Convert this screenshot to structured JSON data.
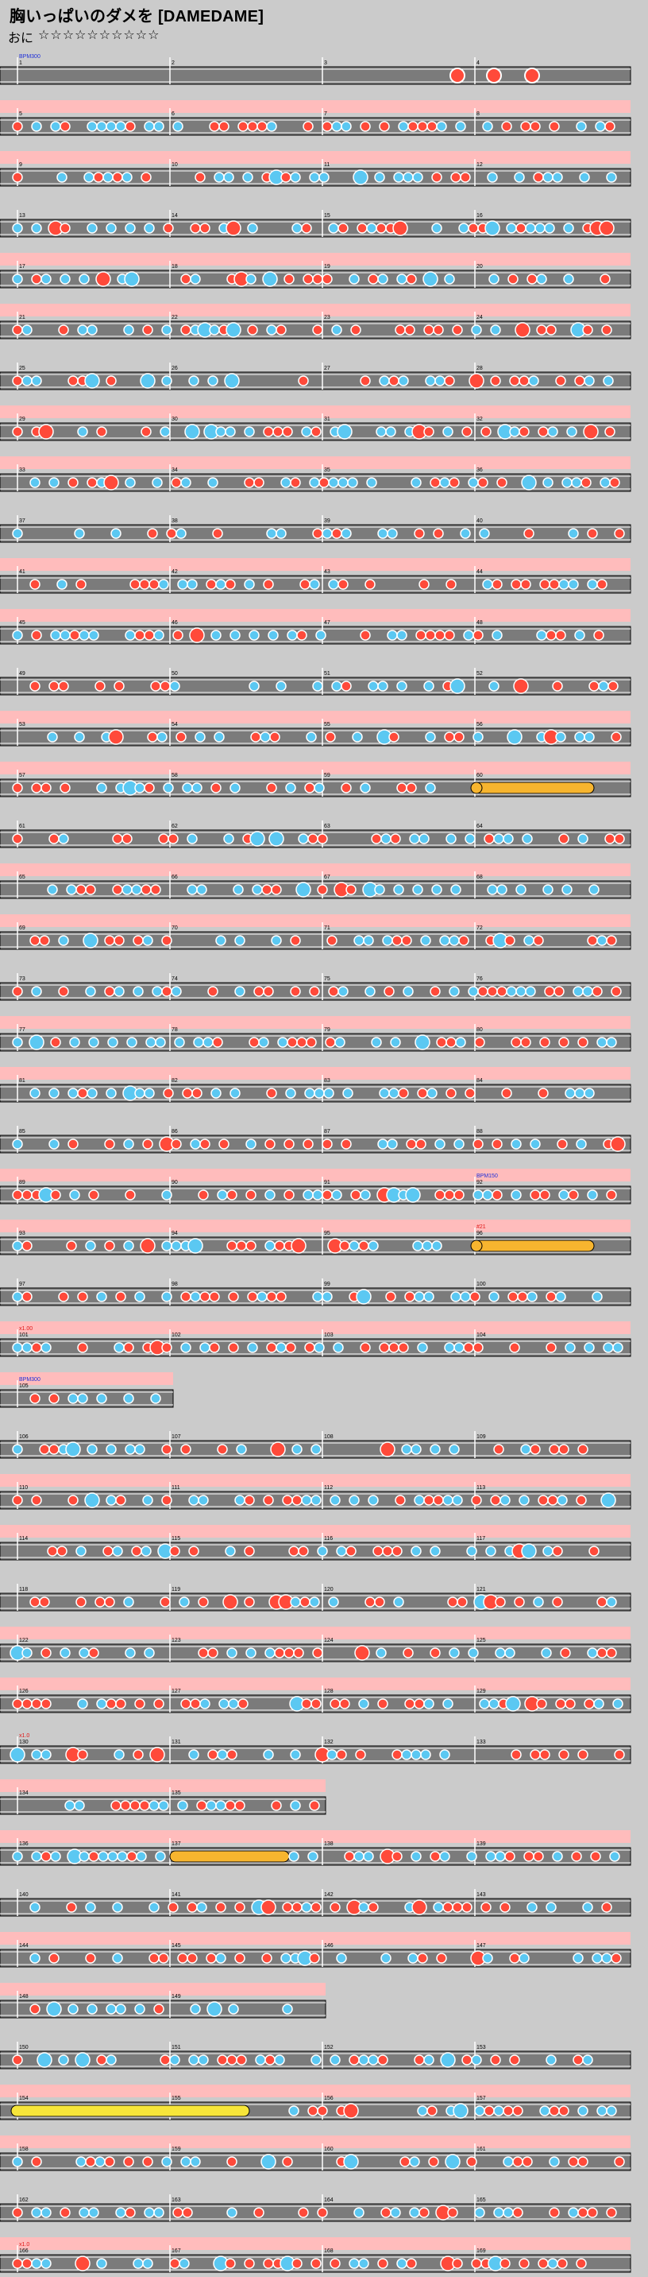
{
  "song": {
    "title": "胸いっぱいのダメを [DAMEDAME]",
    "course_label": "おに",
    "stars": "☆☆☆☆☆☆☆☆☆☆"
  },
  "colors": {
    "background": "#cbcbcb",
    "lane": "#7b7b7b",
    "lane_border": "#000000",
    "gogo": "#ffbcbc",
    "don": "#ff4a3a",
    "ka": "#5bc8f2",
    "roll": "#f7b52f",
    "big_roll": "#f7e63a",
    "bpm_text": "#1e2fd8",
    "scroll_text": "#e01818"
  },
  "chart": {
    "measure_count": 170,
    "markers": [
      {
        "measure": 1,
        "text": "BPM300",
        "kind": "bpm"
      },
      {
        "measure": 92,
        "text": "BPM150",
        "kind": "bpm"
      },
      {
        "measure": 96,
        "text": "#21",
        "kind": "scroll"
      },
      {
        "measure": 101,
        "text": "x1.00",
        "kind": "scroll"
      },
      {
        "measure": 105,
        "text": "BPM300",
        "kind": "bpm"
      },
      {
        "measure": 130,
        "text": "x1.0",
        "kind": "scroll"
      },
      {
        "measure": 166,
        "text": "x1.0",
        "kind": "scroll"
      }
    ]
  }
}
